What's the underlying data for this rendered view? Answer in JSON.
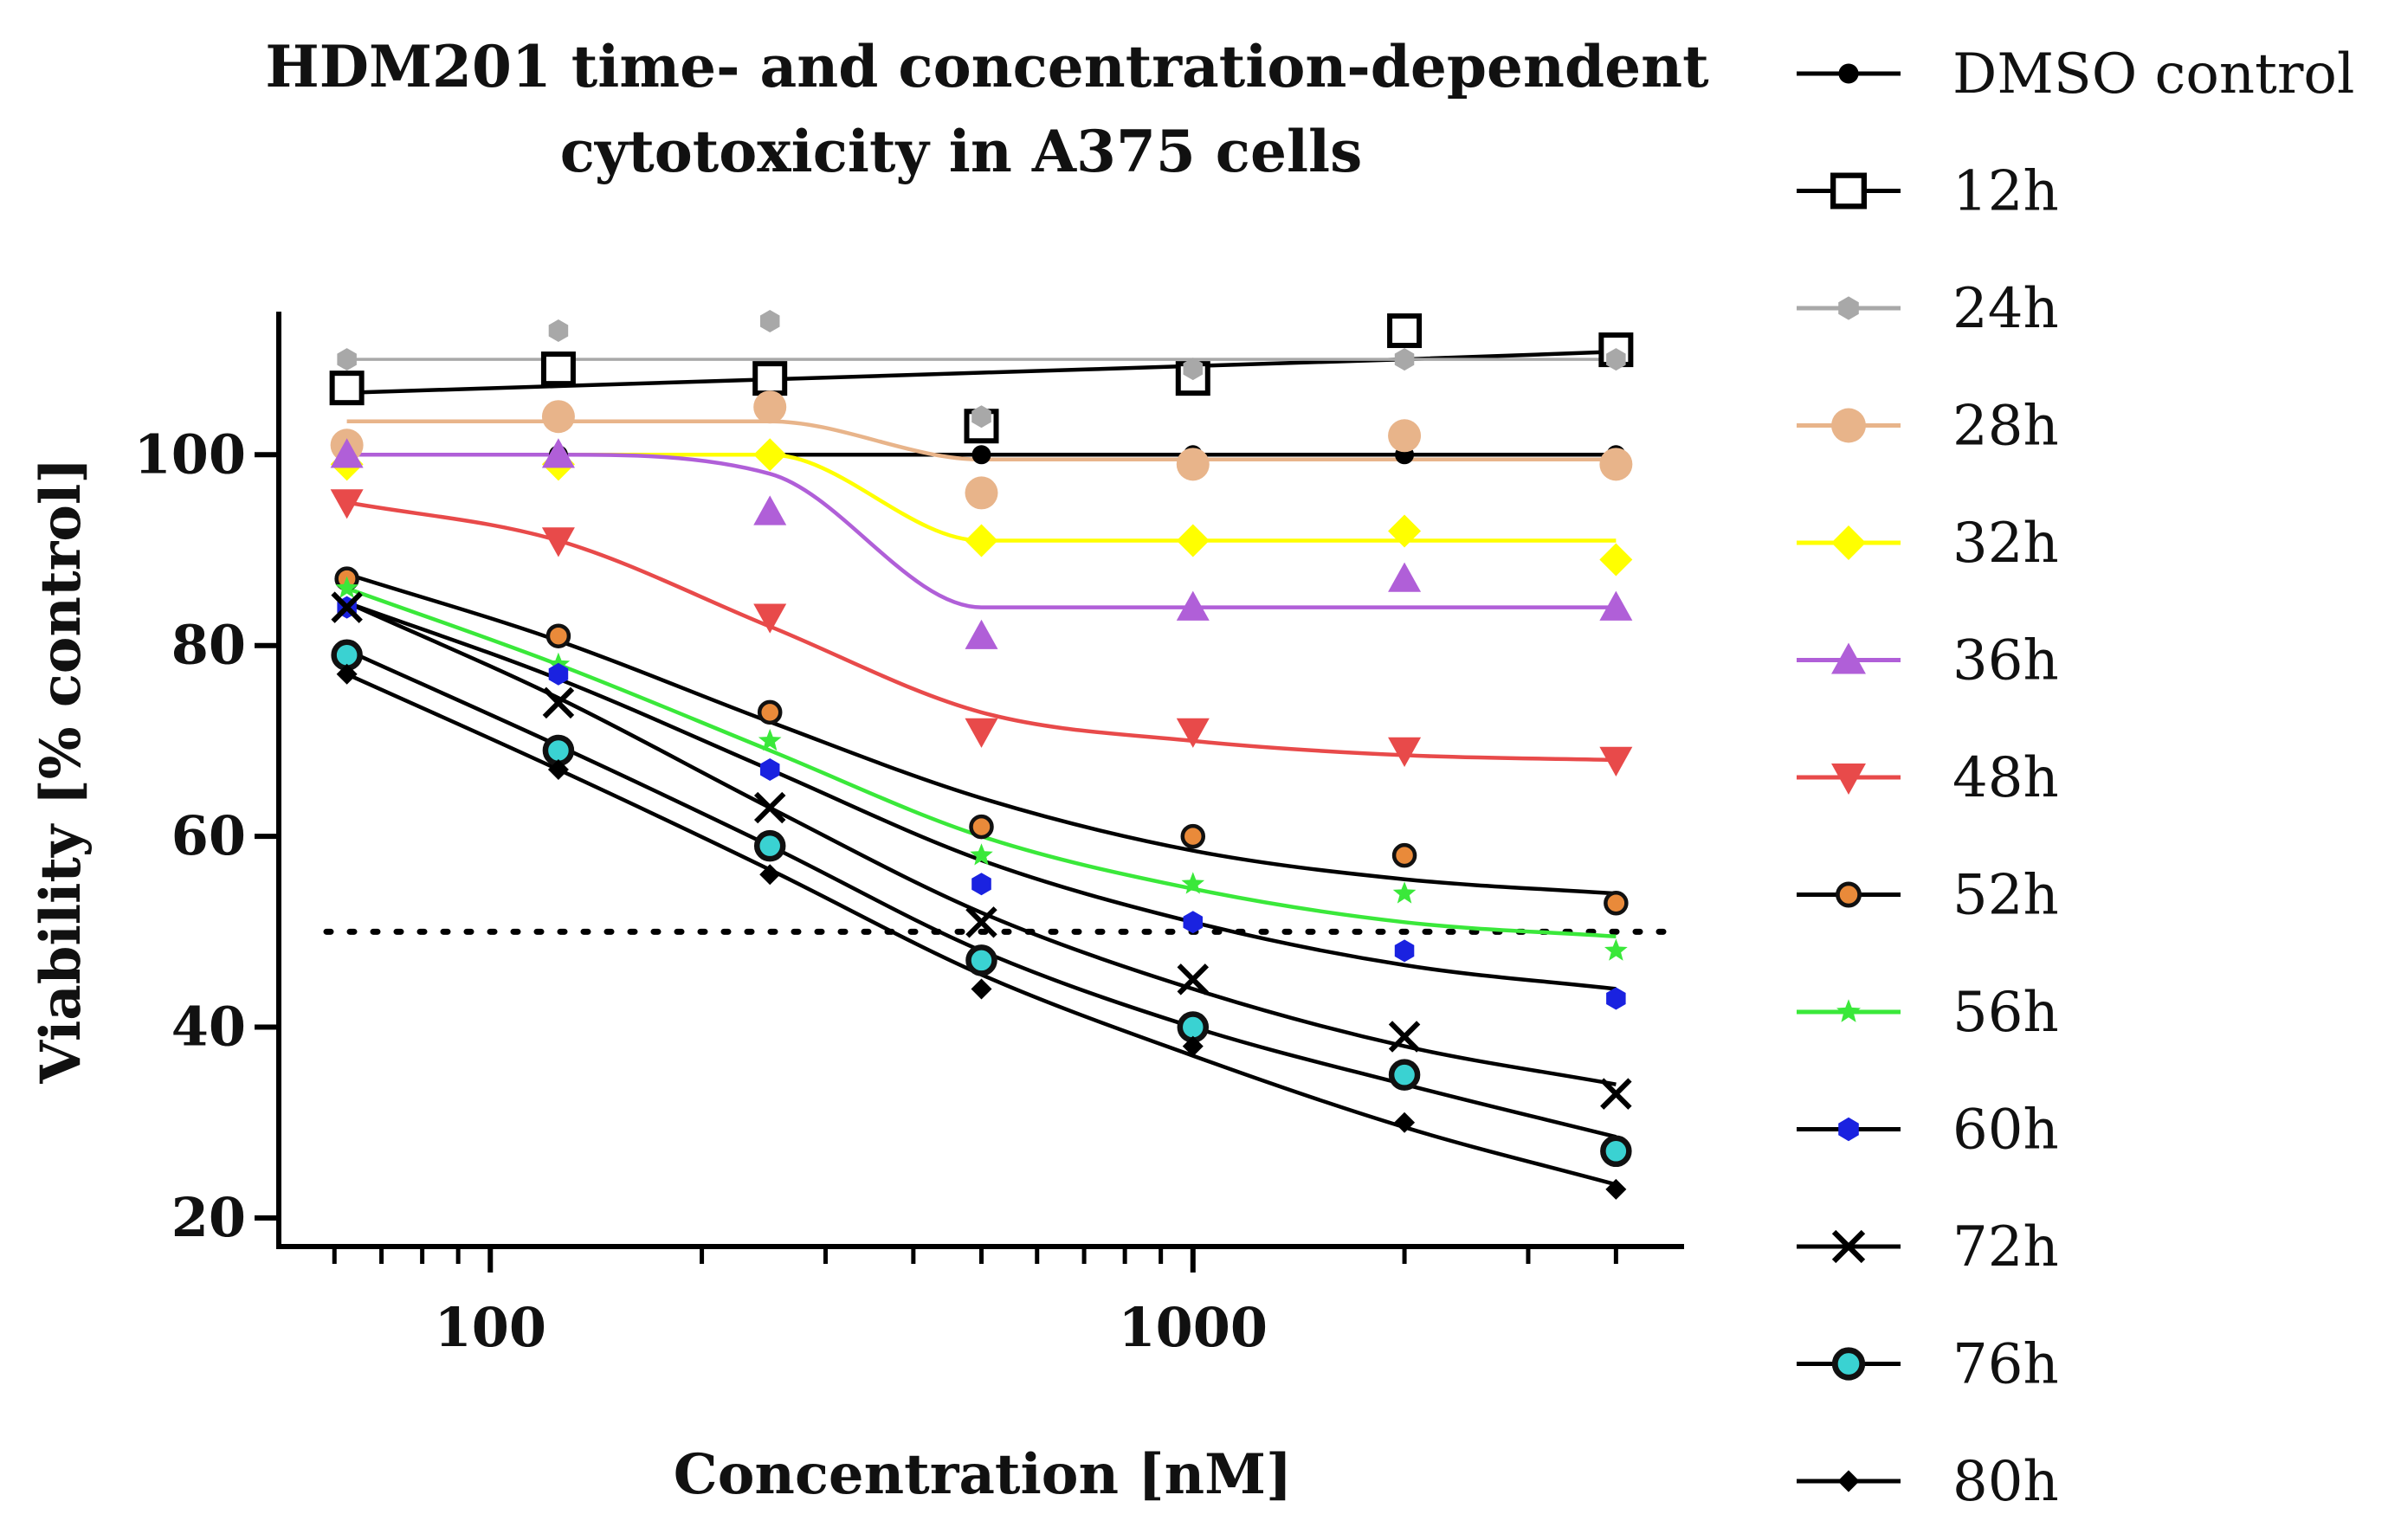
{
  "chart_data": {
    "type": "scatter",
    "title_lines": [
      "HDM201 time- and concentration-dependent",
      "cytotoxicity in A375 cells"
    ],
    "xlabel": "Concentration [nM]",
    "ylabel": "Viability [% control]",
    "xscale": "log",
    "xlim": [
      50,
      5000
    ],
    "ylim": [
      17,
      115
    ],
    "x_ticks": [
      100,
      1000
    ],
    "x_tick_labels": [
      "100",
      "1000"
    ],
    "y_ticks": [
      20,
      40,
      60,
      80,
      100
    ],
    "y_tick_labels": [
      "20",
      "40",
      "60",
      "80",
      "100"
    ],
    "reference_line": {
      "y": 50,
      "style": "dotted"
    },
    "legend_position": "right",
    "x": [
      62.5,
      125,
      250,
      500,
      1000,
      2000,
      4000
    ],
    "series": [
      {
        "name": "DMSO control",
        "marker": "circle",
        "color": "#000000",
        "values": [
          100,
          100,
          100,
          100,
          100,
          100,
          100
        ],
        "fit": [
          100,
          100,
          100,
          100,
          100,
          100,
          100
        ]
      },
      {
        "name": "12h",
        "marker": "square-open",
        "color": "#000000",
        "values": [
          107,
          109,
          108,
          103,
          108,
          113,
          111
        ],
        "fit": [
          106.5,
          107.2,
          107.9,
          108.6,
          109.3,
          110,
          110.8
        ]
      },
      {
        "name": "24h",
        "marker": "hexagon",
        "color": "#a8a8a8",
        "values": [
          110,
          113,
          114,
          104,
          109,
          110,
          110
        ],
        "fit": [
          110,
          110,
          110,
          110,
          110,
          110,
          110
        ]
      },
      {
        "name": "28h",
        "marker": "circle-large",
        "color": "#e8b48a",
        "values": [
          101,
          104,
          105,
          96,
          99,
          102,
          99
        ],
        "fit": [
          103.5,
          103.5,
          103.5,
          99.5,
          99.5,
          99.5,
          99.5
        ]
      },
      {
        "name": "32h",
        "marker": "diamond",
        "color": "#ffff00",
        "values": [
          99,
          99,
          100,
          91,
          91,
          92,
          89
        ],
        "fit": [
          100,
          100,
          100,
          91,
          91,
          91,
          91
        ]
      },
      {
        "name": "36h",
        "marker": "triangle-up",
        "color": "#b05fd8",
        "values": [
          100,
          100,
          94,
          81,
          84,
          87,
          84
        ],
        "fit": [
          100,
          100,
          98,
          84,
          84,
          84,
          84
        ]
      },
      {
        "name": "48h",
        "marker": "triangle-down",
        "color": "#e84a4a",
        "values": [
          95,
          91,
          83,
          71,
          71,
          69,
          68
        ],
        "fit": [
          95,
          91,
          82,
          73,
          70,
          68.5,
          68
        ]
      },
      {
        "name": "52h",
        "marker": "circle-outline",
        "color": "#e98a3a",
        "values": [
          87,
          81,
          73,
          61,
          60,
          58,
          53
        ],
        "fit": [
          87.5,
          80.5,
          72,
          64,
          58.5,
          55.5,
          54
        ]
      },
      {
        "name": "56h",
        "marker": "star",
        "color": "#3ae83a",
        "values": [
          86,
          78,
          70,
          58,
          55,
          54,
          48
        ],
        "fit": [
          86,
          78,
          69,
          60,
          54.5,
          51,
          49.5
        ]
      },
      {
        "name": "60h",
        "marker": "hexagon",
        "color": "#1a22e0",
        "values": [
          84,
          77,
          67,
          55,
          51,
          48,
          43
        ],
        "fit": [
          84.5,
          76.5,
          67,
          57.5,
          51,
          46.5,
          44
        ]
      },
      {
        "name": "72h",
        "marker": "x-cross",
        "color": "#000000",
        "values": [
          84,
          74,
          63,
          51,
          45,
          39,
          33
        ],
        "fit": [
          84.5,
          74.5,
          63,
          52,
          44,
          38,
          34
        ]
      },
      {
        "name": "76h",
        "marker": "circle-cyan",
        "color": "#3ad2d2",
        "values": [
          79,
          69,
          59,
          47,
          40,
          35,
          27
        ],
        "fit": [
          79.5,
          69.5,
          59,
          48,
          40,
          34,
          28.5
        ]
      },
      {
        "name": "80h",
        "marker": "diamond-small",
        "color": "#000000",
        "values": [
          77,
          67,
          56,
          44,
          38,
          30,
          23
        ],
        "fit": [
          77,
          67,
          56.5,
          45.5,
          37,
          29.5,
          23.5
        ]
      }
    ]
  }
}
